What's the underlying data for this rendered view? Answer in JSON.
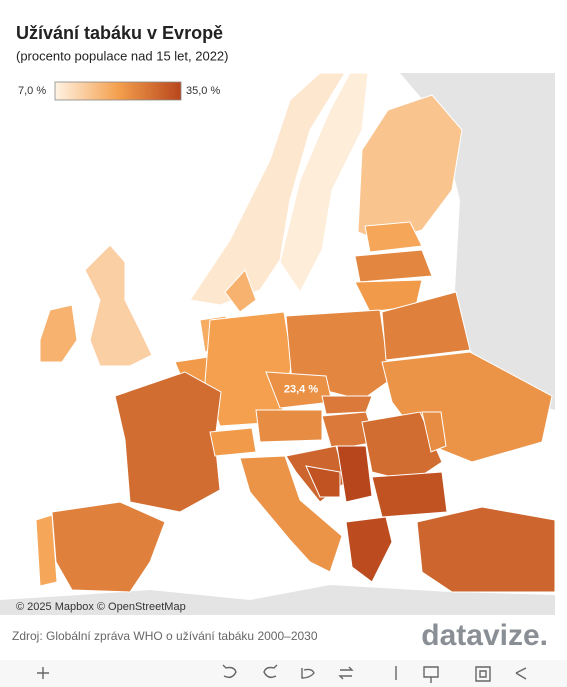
{
  "header": {
    "title": "Užívání tabáku v Evropě",
    "subtitle": "(procento populace nad 15 let, 2022)"
  },
  "legend": {
    "min": {
      "value": 7,
      "label": "7,0 %"
    },
    "max": {
      "value": 35,
      "label": "35,0 %"
    }
  },
  "map": {
    "values": [
      9,
      8,
      15,
      20,
      25,
      22,
      13,
      18,
      18,
      19,
      22,
      21,
      25,
      23.4,
      29,
      26,
      20,
      22,
      24,
      23,
      27,
      27,
      23,
      26,
      29,
      30,
      35,
      33,
      33,
      34,
      30,
      24
    ],
    "label_index": 13,
    "label": "23,4 %"
  },
  "attribution": "© 2025 Mapbox © OpenStreetMap",
  "source": "Zdroj: Globální zpráva WHO o užívání tabáku 2000–2030",
  "logo": "datavize."
}
